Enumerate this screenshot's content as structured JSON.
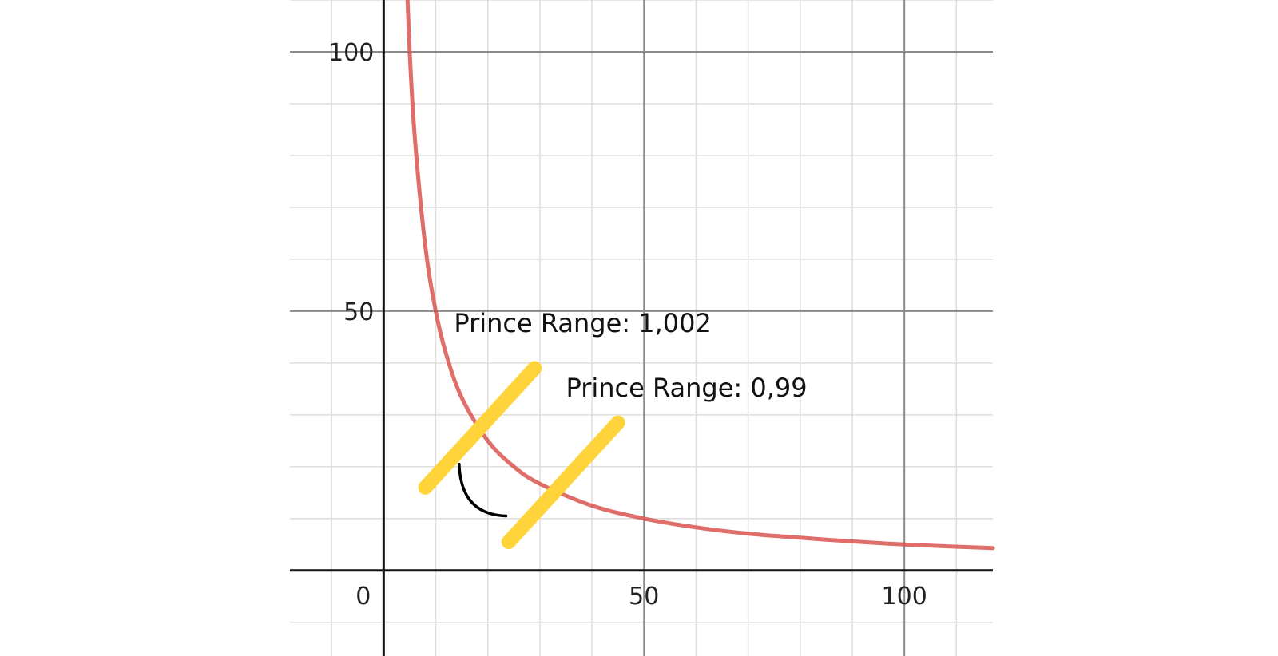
{
  "chart_data": {
    "type": "line",
    "title": "",
    "xlabel": "",
    "ylabel": "",
    "xlim": [
      -18,
      117
    ],
    "ylim": [
      -16.5,
      110
    ],
    "grid": true,
    "x_ticks": [
      {
        "value": 50,
        "label": "50"
      },
      {
        "value": 100,
        "label": "100"
      }
    ],
    "y_ticks": [
      {
        "value": 50,
        "label": "50"
      },
      {
        "value": 100,
        "label": "100"
      }
    ],
    "origin_label": "0",
    "minor_grid_step": 10,
    "major_grid_step": 50,
    "series": [
      {
        "function": "y = 500 / x",
        "color": "#d9534f",
        "x": [
          4,
          5,
          6,
          8,
          10,
          12,
          15,
          20,
          25,
          30,
          40,
          50,
          60,
          70,
          80,
          90,
          100,
          117
        ],
        "y": [
          125,
          100,
          83.3,
          62.5,
          50,
          41.7,
          33.3,
          25,
          20,
          16.7,
          12.5,
          10,
          8.3,
          7.1,
          6.3,
          5.6,
          5,
          4.3
        ]
      }
    ],
    "annotations": [
      {
        "text": "Prince Range: 1,002",
        "x": 13.5,
        "y": 46
      },
      {
        "text": "Prince Range: 0,99",
        "x": 35,
        "y": 33.5
      }
    ],
    "highlight_lines": [
      {
        "color": "#ffd43b",
        "from": [
          8,
          16
        ],
        "to": [
          29,
          39
        ]
      },
      {
        "color": "#ffd43b",
        "from": [
          24,
          5.5
        ],
        "to": [
          45,
          28.5
        ]
      }
    ],
    "angle_arc": {
      "color": "#000000",
      "from": [
        14.5,
        20.5
      ],
      "to": [
        23.5,
        10.5
      ]
    }
  }
}
